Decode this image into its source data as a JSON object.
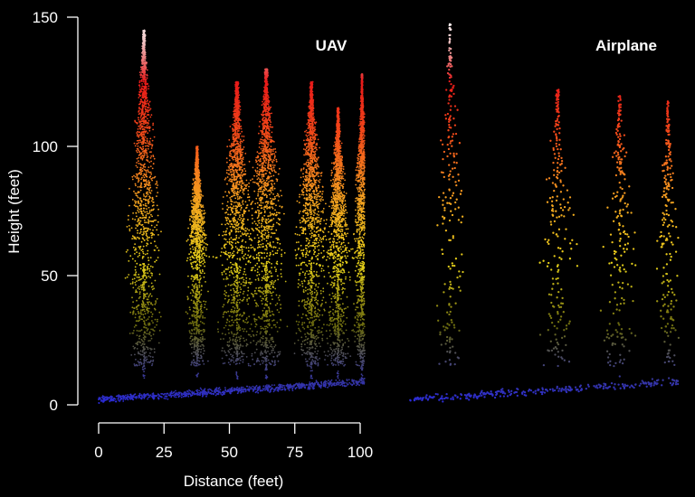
{
  "chart_data": {
    "type": "scatter",
    "description_unit": "LiDAR point cloud profile, points colored by height",
    "xlabel": "Distance (feet)",
    "ylabel": "Height (feet)",
    "xlim": [
      0,
      100
    ],
    "ylim": [
      0,
      150
    ],
    "x_ticks": [
      0,
      25,
      50,
      75,
      100
    ],
    "y_ticks": [
      0,
      50,
      100,
      150
    ],
    "grid": false,
    "background": "#000000",
    "color_scale": {
      "variable": "height",
      "stops": [
        {
          "height": 0,
          "color": "#2a2ae0"
        },
        {
          "height": 12,
          "color": "#3a3a90"
        },
        {
          "height": 30,
          "color": "#6a6a10"
        },
        {
          "height": 55,
          "color": "#e8d21a"
        },
        {
          "height": 80,
          "color": "#f5a020"
        },
        {
          "height": 105,
          "color": "#f34a1a"
        },
        {
          "height": 125,
          "color": "#e81a1a"
        },
        {
          "height": 140,
          "color": "#f0c0c0"
        },
        {
          "height": 150,
          "color": "#ffffff"
        }
      ]
    },
    "panels": [
      {
        "title": "UAV",
        "density": "high",
        "trees": [
          {
            "x": 17,
            "top": 145,
            "crown_base": 55,
            "width": 20
          },
          {
            "x": 37,
            "top": 100,
            "crown_base": 55,
            "width": 12
          },
          {
            "x": 52,
            "top": 125,
            "crown_base": 55,
            "width": 22
          },
          {
            "x": 63,
            "top": 130,
            "crown_base": 55,
            "width": 22
          },
          {
            "x": 80,
            "top": 125,
            "crown_base": 55,
            "width": 20
          },
          {
            "x": 90,
            "top": 115,
            "crown_base": 55,
            "width": 14
          },
          {
            "x": 99,
            "top": 128,
            "crown_base": 55,
            "width": 10
          }
        ],
        "ground_height_start": 2,
        "ground_height_end": 9
      },
      {
        "title": "Airplane",
        "density": "sparse",
        "trees": [
          {
            "x": 15,
            "top": 148,
            "crown_base": 55,
            "width": 18
          },
          {
            "x": 55,
            "top": 122,
            "crown_base": 50,
            "width": 22
          },
          {
            "x": 78,
            "top": 120,
            "crown_base": 50,
            "width": 20
          },
          {
            "x": 96,
            "top": 118,
            "crown_base": 50,
            "width": 14
          }
        ],
        "ground_height_start": 2,
        "ground_height_end": 9
      }
    ]
  }
}
